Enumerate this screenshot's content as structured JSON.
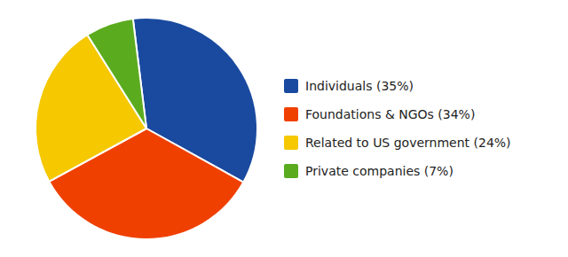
{
  "chart_data": {
    "type": "pie",
    "categories": [
      "Individuals (35%)",
      "Foundations & NGOs (34%)",
      "Related to US government (24%)",
      "Private companies (7%)"
    ],
    "values": [
      35,
      34,
      24,
      7
    ],
    "colors": [
      "#1a4a9f",
      "#f04000",
      "#f5c800",
      "#5aab1e"
    ],
    "legend": "right"
  }
}
